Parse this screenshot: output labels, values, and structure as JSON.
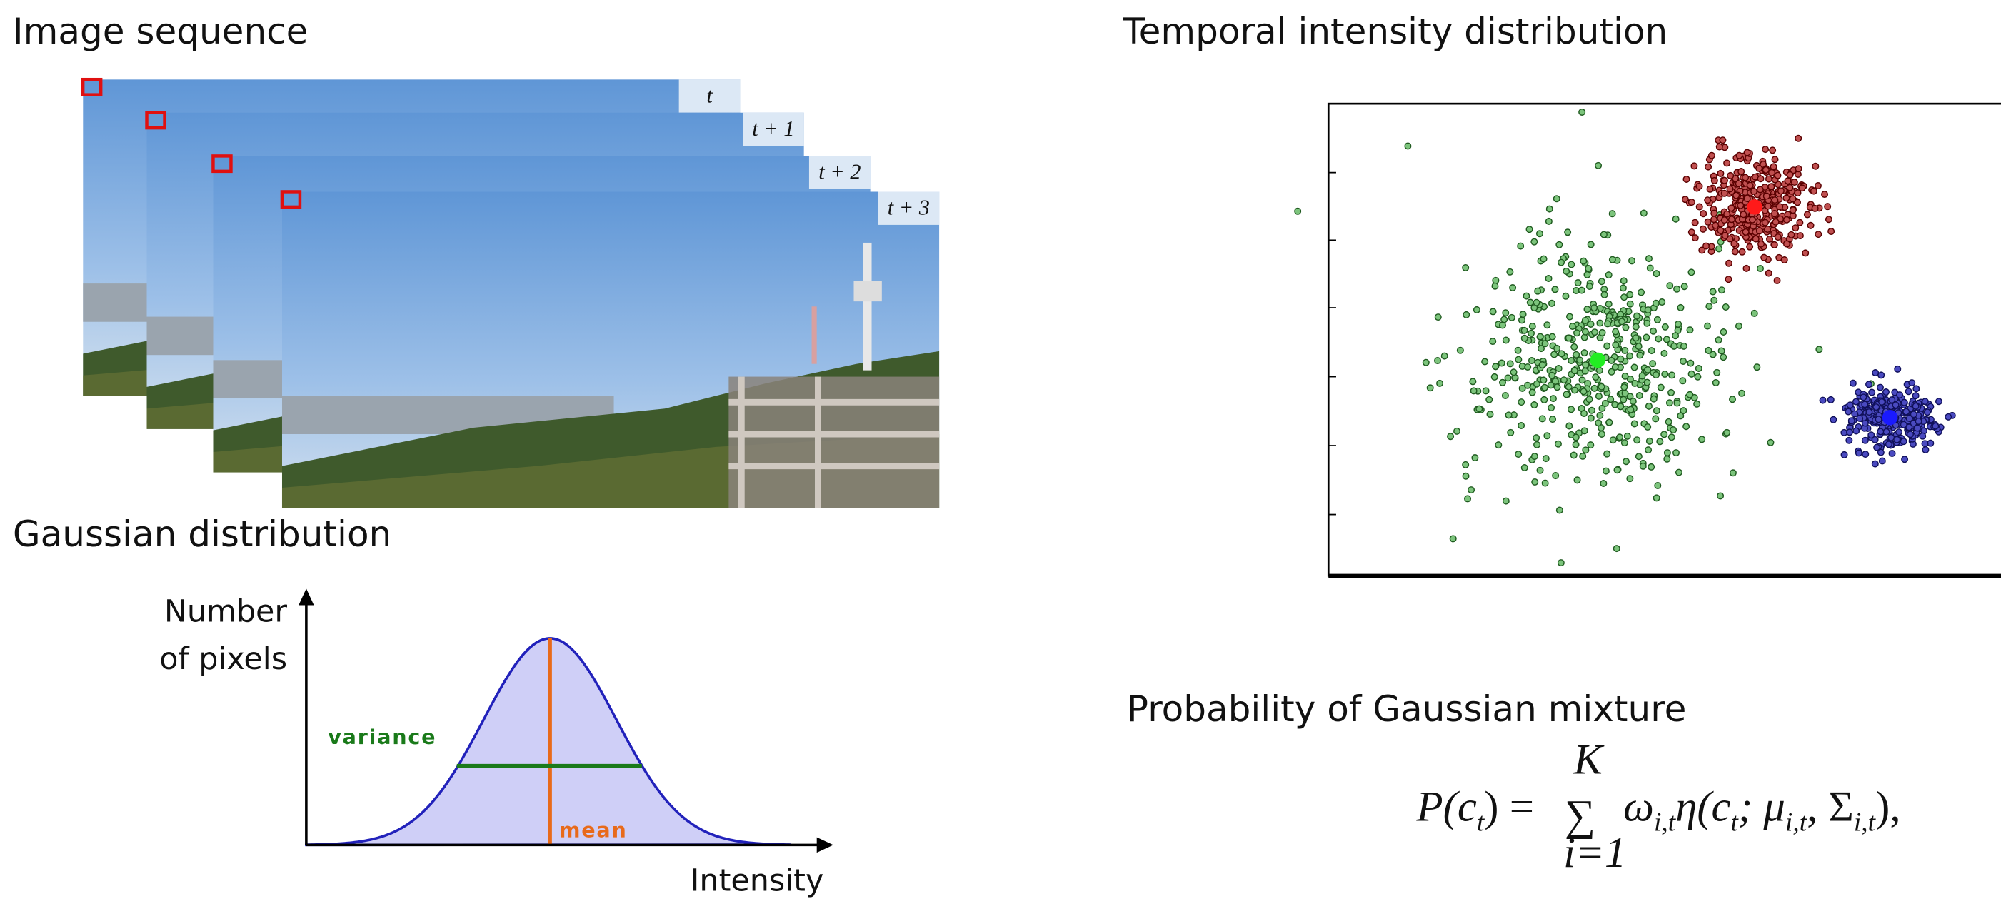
{
  "image_sequence": {
    "title": "Image sequence",
    "frame_labels": [
      "t",
      "t + 1",
      "t + 2",
      "t + 3"
    ]
  },
  "gaussian": {
    "title": "Gaussian distribution",
    "y_axis_label": [
      "Number",
      "of pixels"
    ],
    "x_axis_label": "Intensity",
    "variance_label": "variance",
    "mean_label": "mean"
  },
  "scatter": {
    "title": "Temporal intensity distribution"
  },
  "mixture": {
    "title": "Probability of Gaussian mixture",
    "formula": {
      "lhs": [
        "P(c",
        "t",
        ") = "
      ],
      "sum": {
        "symbol": "∑",
        "upper": "K",
        "lower": "i=1"
      },
      "rhs": [
        "ω",
        "i,t",
        "η(c",
        "t",
        "; μ",
        "i,t",
        ", Σ",
        "i,t",
        "),"
      ]
    }
  }
}
